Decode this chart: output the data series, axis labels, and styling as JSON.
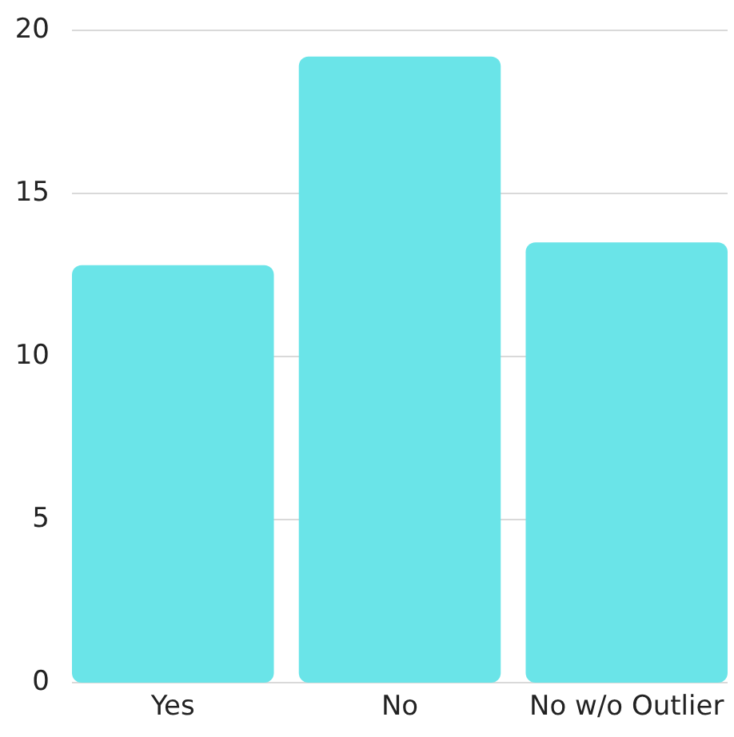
{
  "chart_data": {
    "type": "bar",
    "categories": [
      "Yes",
      "No",
      "No w/o Outlier"
    ],
    "values": [
      12.8,
      19.2,
      13.5
    ],
    "color": "#6ae4e8",
    "ylim": [
      0,
      20
    ],
    "yticks": [
      0,
      5,
      10,
      15,
      20
    ],
    "grid": "y"
  }
}
